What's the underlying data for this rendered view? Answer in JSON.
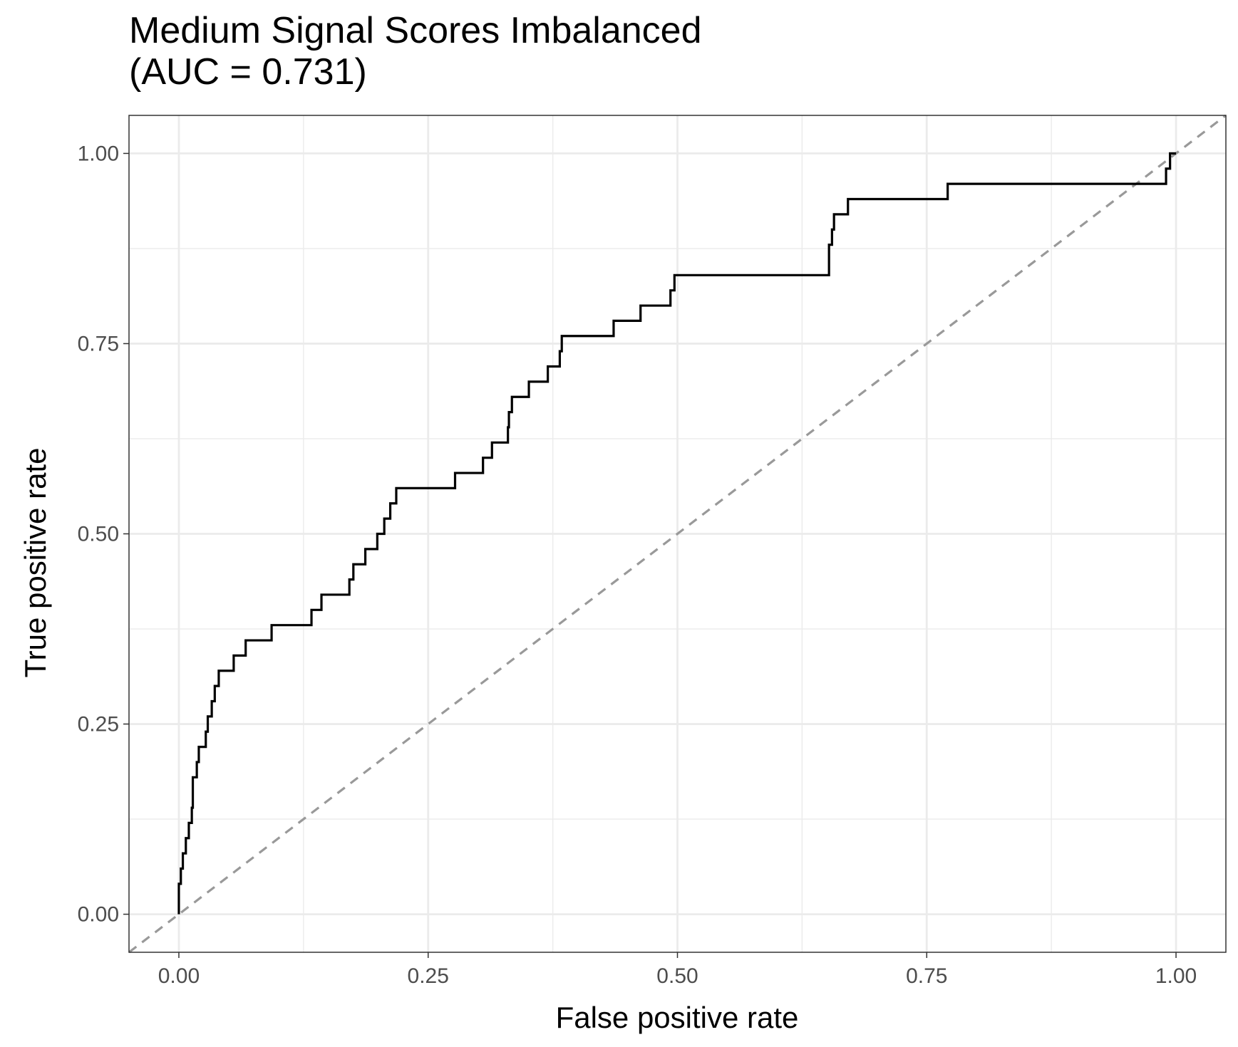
{
  "chart_data": {
    "type": "line",
    "title_lines": [
      "Medium Signal Scores Imbalanced",
      "(AUC = 0.731)"
    ],
    "xlabel": "False positive rate",
    "ylabel": "True positive rate",
    "xlim": [
      -0.05,
      1.05
    ],
    "ylim": [
      -0.05,
      1.05
    ],
    "x_ticks": [
      "0.00",
      "0.25",
      "0.50",
      "0.75",
      "1.00"
    ],
    "y_ticks": [
      "0.00",
      "0.25",
      "0.50",
      "0.75",
      "1.00"
    ],
    "grid": true,
    "series": [
      {
        "style": "step",
        "color": "#000000",
        "points": [
          [
            0.0,
            0.0
          ],
          [
            0.0,
            0.04
          ],
          [
            0.002,
            0.04
          ],
          [
            0.002,
            0.06
          ],
          [
            0.004,
            0.06
          ],
          [
            0.004,
            0.08
          ],
          [
            0.007,
            0.08
          ],
          [
            0.007,
            0.1
          ],
          [
            0.01,
            0.1
          ],
          [
            0.01,
            0.12
          ],
          [
            0.013,
            0.12
          ],
          [
            0.013,
            0.14
          ],
          [
            0.014,
            0.14
          ],
          [
            0.014,
            0.18
          ],
          [
            0.018,
            0.18
          ],
          [
            0.018,
            0.2
          ],
          [
            0.02,
            0.2
          ],
          [
            0.02,
            0.22
          ],
          [
            0.027,
            0.22
          ],
          [
            0.027,
            0.24
          ],
          [
            0.029,
            0.24
          ],
          [
            0.029,
            0.26
          ],
          [
            0.033,
            0.26
          ],
          [
            0.033,
            0.28
          ],
          [
            0.036,
            0.28
          ],
          [
            0.036,
            0.3
          ],
          [
            0.04,
            0.3
          ],
          [
            0.04,
            0.32
          ],
          [
            0.055,
            0.32
          ],
          [
            0.055,
            0.34
          ],
          [
            0.067,
            0.34
          ],
          [
            0.067,
            0.36
          ],
          [
            0.093,
            0.36
          ],
          [
            0.093,
            0.38
          ],
          [
            0.133,
            0.38
          ],
          [
            0.133,
            0.4
          ],
          [
            0.143,
            0.4
          ],
          [
            0.143,
            0.42
          ],
          [
            0.171,
            0.42
          ],
          [
            0.171,
            0.44
          ],
          [
            0.175,
            0.44
          ],
          [
            0.175,
            0.46
          ],
          [
            0.187,
            0.46
          ],
          [
            0.187,
            0.48
          ],
          [
            0.199,
            0.48
          ],
          [
            0.199,
            0.5
          ],
          [
            0.206,
            0.5
          ],
          [
            0.206,
            0.52
          ],
          [
            0.212,
            0.52
          ],
          [
            0.212,
            0.54
          ],
          [
            0.218,
            0.54
          ],
          [
            0.218,
            0.56
          ],
          [
            0.277,
            0.56
          ],
          [
            0.277,
            0.58
          ],
          [
            0.305,
            0.58
          ],
          [
            0.305,
            0.6
          ],
          [
            0.314,
            0.6
          ],
          [
            0.314,
            0.62
          ],
          [
            0.33,
            0.62
          ],
          [
            0.33,
            0.64
          ],
          [
            0.331,
            0.64
          ],
          [
            0.331,
            0.66
          ],
          [
            0.334,
            0.66
          ],
          [
            0.334,
            0.68
          ],
          [
            0.351,
            0.68
          ],
          [
            0.351,
            0.7
          ],
          [
            0.37,
            0.7
          ],
          [
            0.37,
            0.72
          ],
          [
            0.382,
            0.72
          ],
          [
            0.382,
            0.74
          ],
          [
            0.384,
            0.74
          ],
          [
            0.384,
            0.76
          ],
          [
            0.436,
            0.76
          ],
          [
            0.436,
            0.78
          ],
          [
            0.463,
            0.78
          ],
          [
            0.463,
            0.8
          ],
          [
            0.493,
            0.8
          ],
          [
            0.493,
            0.82
          ],
          [
            0.497,
            0.82
          ],
          [
            0.497,
            0.84
          ],
          [
            0.652,
            0.84
          ],
          [
            0.652,
            0.88
          ],
          [
            0.655,
            0.88
          ],
          [
            0.655,
            0.9
          ],
          [
            0.657,
            0.9
          ],
          [
            0.657,
            0.92
          ],
          [
            0.671,
            0.92
          ],
          [
            0.671,
            0.94
          ],
          [
            0.771,
            0.94
          ],
          [
            0.771,
            0.96
          ],
          [
            0.99,
            0.96
          ],
          [
            0.99,
            0.98
          ],
          [
            0.994,
            0.98
          ],
          [
            0.994,
            1.0
          ],
          [
            1.0,
            1.0
          ]
        ]
      },
      {
        "style": "dashed-reference",
        "color": "#999999",
        "points": [
          [
            -0.05,
            -0.05
          ],
          [
            1.05,
            1.05
          ]
        ]
      }
    ]
  }
}
